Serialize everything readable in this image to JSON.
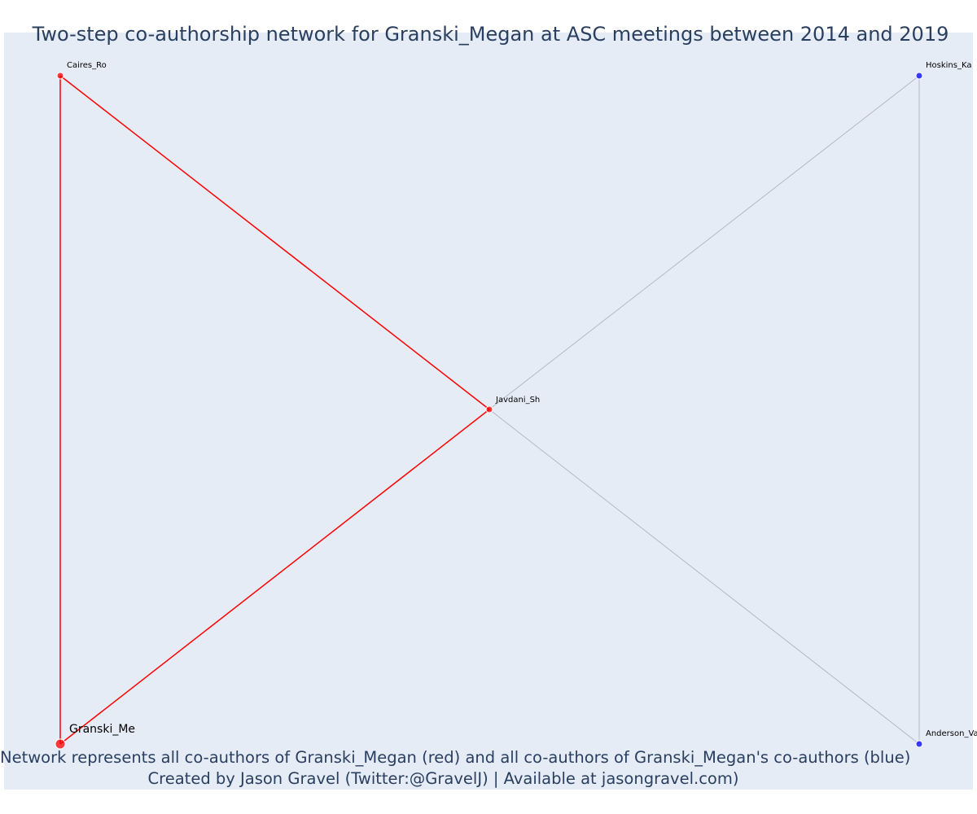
{
  "title": "Two-step co-authorship network for Granski_Megan at ASC meetings between 2014 and 2019",
  "caption": {
    "line1": "Network represents all co-authors of Granski_Megan (red) and all co-authors of Granski_Megan's co-authors (blue)",
    "line2": "Created by Jason Gravel (Twitter:@GravelJ) | Available at jasongravel.com)"
  },
  "colors": {
    "plot_background": "#e5ecf6",
    "direct_coauthor": "#ff0000",
    "indirect_coauthor": "#0000ff",
    "direct_edge": "#ff0000",
    "indirect_edge": "#b4b8c8",
    "text": "#2a3f5f"
  },
  "nodes": [
    {
      "id": "granski",
      "label": "Granski_Me",
      "group": "focal"
    },
    {
      "id": "caires",
      "label": "Caires_Ro",
      "group": "direct"
    },
    {
      "id": "javdani",
      "label": "Javdani_Sh",
      "group": "direct"
    },
    {
      "id": "hoskins",
      "label": "Hoskins_Ka",
      "group": "indirect"
    },
    {
      "id": "anderson",
      "label": "Anderson_Va",
      "group": "indirect"
    }
  ],
  "edges": [
    {
      "source": "granski",
      "target": "caires",
      "type": "direct"
    },
    {
      "source": "granski",
      "target": "javdani",
      "type": "direct"
    },
    {
      "source": "caires",
      "target": "javdani",
      "type": "direct"
    },
    {
      "source": "javdani",
      "target": "hoskins",
      "type": "indirect"
    },
    {
      "source": "javdani",
      "target": "anderson",
      "type": "indirect"
    },
    {
      "source": "hoskins",
      "target": "anderson",
      "type": "indirect"
    }
  ]
}
